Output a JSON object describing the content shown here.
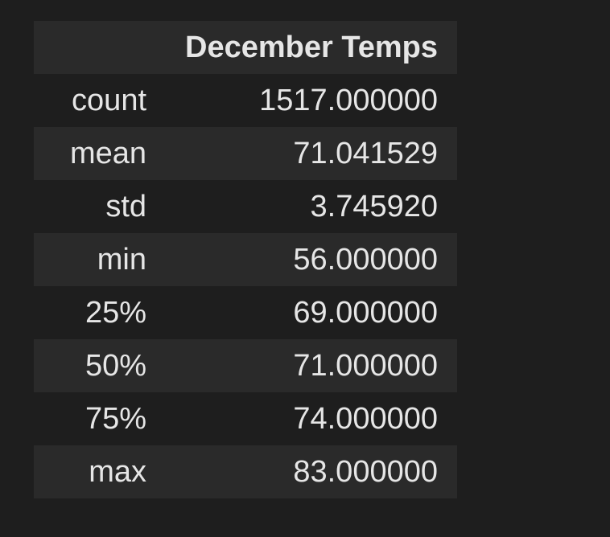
{
  "table": {
    "index_header": "",
    "columns": [
      "December Temps"
    ],
    "rows": [
      {
        "index": "count",
        "value": "1517.000000"
      },
      {
        "index": "mean",
        "value": "71.041529"
      },
      {
        "index": "std",
        "value": "3.745920"
      },
      {
        "index": "min",
        "value": "56.000000"
      },
      {
        "index": "25%",
        "value": "69.000000"
      },
      {
        "index": "50%",
        "value": "71.000000"
      },
      {
        "index": "75%",
        "value": "74.000000"
      },
      {
        "index": "max",
        "value": "83.000000"
      }
    ]
  },
  "colors": {
    "background": "#1e1e1e",
    "stripe": "#2a2a2a",
    "text": "#e6e6e6"
  }
}
